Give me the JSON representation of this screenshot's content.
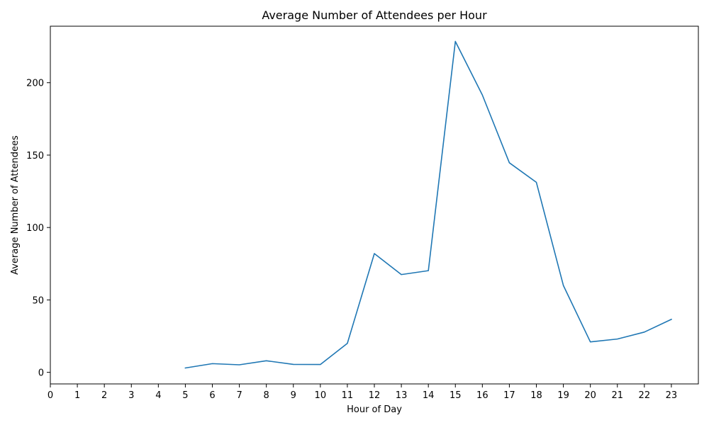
{
  "chart_data": {
    "type": "line",
    "title": "Average Number of Attendees per Hour",
    "xlabel": "Hour of Day",
    "ylabel": "Average Number of Attendees",
    "xlim": [
      0,
      24
    ],
    "ylim": [
      -8,
      239
    ],
    "x_ticks": [
      0,
      1,
      2,
      3,
      4,
      5,
      6,
      7,
      8,
      9,
      10,
      11,
      12,
      13,
      14,
      15,
      16,
      17,
      18,
      19,
      20,
      21,
      22,
      23
    ],
    "y_ticks": [
      0,
      50,
      100,
      150,
      200
    ],
    "grid": false,
    "legend": false,
    "series": [
      {
        "color": "#1f77b4",
        "x": [
          5,
          6,
          7,
          8,
          9,
          10,
          11,
          12,
          13,
          14,
          15,
          16,
          17,
          18,
          19,
          20,
          21,
          22,
          23
        ],
        "values": [
          3,
          6,
          5.2,
          8,
          5.5,
          5.4,
          20,
          82,
          67.5,
          70.2,
          228.5,
          191.5,
          144.7,
          131.2,
          60,
          21,
          23,
          27.8,
          36.6
        ]
      }
    ]
  }
}
